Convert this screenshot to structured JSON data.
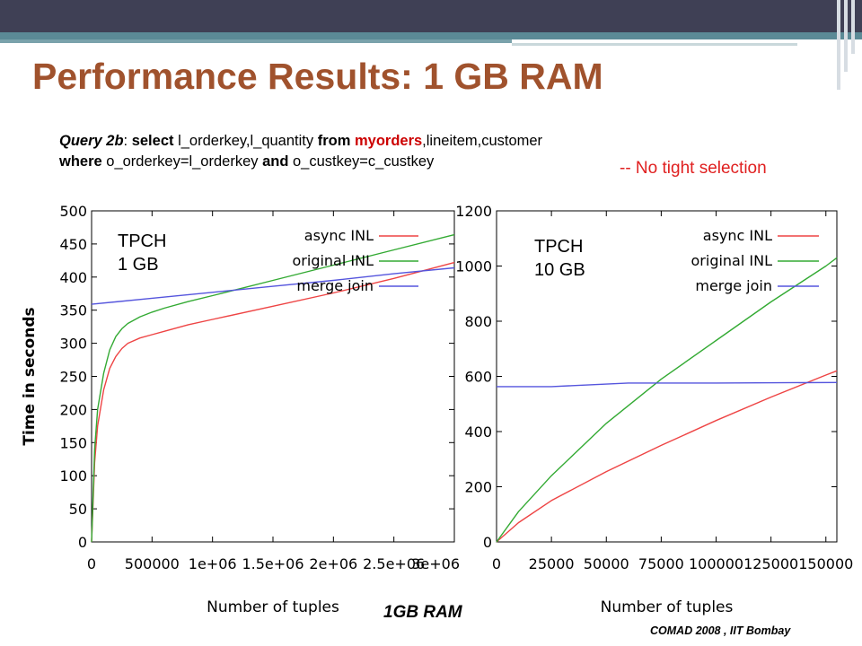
{
  "slide": {
    "title": "Performance Results: 1 GB RAM",
    "query_line1": {
      "label": "Query 2b",
      "sep": ": ",
      "kw_select": "select",
      "cols": " l_orderkey,l_quantity ",
      "kw_from": "from",
      "sp": " ",
      "table_hl": "myorders",
      "tables_rest": ",lineitem,customer"
    },
    "query_line2": {
      "kw_where": "where",
      "cond1": " o_orderkey=l_orderkey ",
      "kw_and": "and",
      "cond2": " o_custkey=c_custkey"
    },
    "notice": "-- No tight selection",
    "tpch_left": {
      "line1": "TPCH",
      "line2": "1 GB"
    },
    "tpch_right": {
      "line1": "TPCH",
      "line2": "10 GB"
    },
    "caption": "1GB RAM",
    "footer": "COMAD 2008 , IIT Bombay"
  },
  "chart_data": [
    {
      "type": "line",
      "xlabel": "Number of tuples",
      "ylabel": "Time in seconds",
      "xlim": [
        0,
        3000000
      ],
      "ylim": [
        0,
        500
      ],
      "xticks": [
        0,
        500000,
        1000000,
        1500000,
        2000000,
        2500000,
        3000000
      ],
      "xtick_labels": [
        "0",
        "500000",
        "1e+06",
        "1.5e+06",
        "2e+06",
        "2.5e+06",
        "3e+06"
      ],
      "yticks": [
        0,
        50,
        100,
        150,
        200,
        250,
        300,
        350,
        400,
        450,
        500
      ],
      "ytick_labels": [
        "0",
        "50",
        "100",
        "150",
        "200",
        "250",
        "300",
        "350",
        "400",
        "450",
        "500"
      ],
      "grid": false,
      "legend": "top-right",
      "series": [
        {
          "name": "async INL",
          "color": "#ee4444",
          "x": [
            0,
            25000,
            50000,
            100000,
            150000,
            200000,
            250000,
            300000,
            400000,
            500000,
            600000,
            800000,
            1000000,
            1500000,
            2000000,
            2500000,
            3000000
          ],
          "y": [
            0,
            120,
            175,
            230,
            262,
            280,
            292,
            300,
            308,
            313,
            318,
            328,
            336,
            356,
            376,
            398,
            422
          ]
        },
        {
          "name": "original INL",
          "color": "#33aa33",
          "x": [
            0,
            25000,
            50000,
            100000,
            150000,
            200000,
            250000,
            300000,
            400000,
            500000,
            600000,
            800000,
            1000000,
            1500000,
            2000000,
            2500000,
            3000000
          ],
          "y": [
            0,
            140,
            200,
            255,
            290,
            310,
            322,
            330,
            340,
            347,
            353,
            363,
            372,
            395,
            418,
            441,
            464
          ]
        },
        {
          "name": "merge join",
          "color": "#5555dd",
          "x": [
            0,
            500000,
            1000000,
            1500000,
            2000000,
            2500000,
            3000000
          ],
          "y": [
            359,
            368,
            377,
            386,
            395,
            405,
            414
          ]
        }
      ]
    },
    {
      "type": "line",
      "xlabel": "Number of tuples",
      "ylabel": "",
      "xlim": [
        0,
        155000
      ],
      "ylim": [
        0,
        1200
      ],
      "xticks": [
        0,
        25000,
        50000,
        75000,
        100000,
        125000,
        150000
      ],
      "xtick_labels": [
        "0",
        "25000",
        "50000",
        "75000",
        "100000",
        "125000",
        "150000"
      ],
      "yticks": [
        0,
        200,
        400,
        600,
        800,
        1000,
        1200
      ],
      "ytick_labels": [
        "0",
        "200",
        "400",
        "600",
        "800",
        "1000",
        "1200"
      ],
      "grid": false,
      "legend": "top-right",
      "series": [
        {
          "name": "async INL",
          "color": "#ee4444",
          "x": [
            0,
            10000,
            25000,
            50000,
            75000,
            100000,
            125000,
            150000,
            155000
          ],
          "y": [
            0,
            70,
            150,
            255,
            350,
            440,
            525,
            605,
            620
          ]
        },
        {
          "name": "original INL",
          "color": "#33aa33",
          "x": [
            0,
            10000,
            25000,
            50000,
            75000,
            100000,
            125000,
            150000,
            155000
          ],
          "y": [
            0,
            110,
            240,
            430,
            590,
            730,
            870,
            1000,
            1030
          ]
        },
        {
          "name": "merge join",
          "color": "#5555dd",
          "x": [
            0,
            25000,
            60000,
            100000,
            155000
          ],
          "y": [
            563,
            563,
            576,
            576,
            578
          ]
        }
      ]
    }
  ]
}
